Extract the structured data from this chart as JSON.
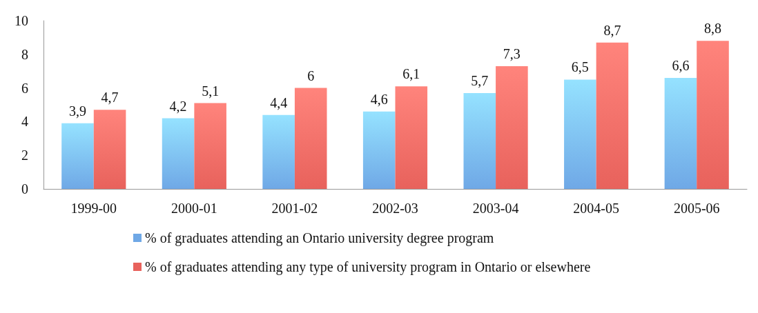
{
  "chart_data": {
    "type": "bar",
    "categories": [
      "1999-00",
      "2000-01",
      "2001-02",
      "2002-03",
      "2003-04",
      "2004-05",
      "2005-06"
    ],
    "series": [
      {
        "name": "% of graduates attending an Ontario university degree program",
        "color": "#6fa8e6",
        "values": [
          3.9,
          4.2,
          4.4,
          4.6,
          5.7,
          6.5,
          6.6
        ],
        "value_labels": [
          "3,9",
          "4,2",
          "4,4",
          "4,6",
          "5,7",
          "6,5",
          "6,6"
        ]
      },
      {
        "name": "% of graduates attending any type of university program in Ontario or elsewhere",
        "color": "#e8625c",
        "values": [
          4.7,
          5.1,
          6,
          6.1,
          7.3,
          8.7,
          8.8
        ],
        "value_labels": [
          "4,7",
          "5,1",
          "6",
          "6,1",
          "7,3",
          "8,7",
          "8,8"
        ]
      }
    ],
    "ylim": [
      0,
      10
    ],
    "yticks": [
      0,
      2,
      4,
      6,
      8,
      10
    ],
    "grid": false,
    "legend": "bottom left"
  }
}
